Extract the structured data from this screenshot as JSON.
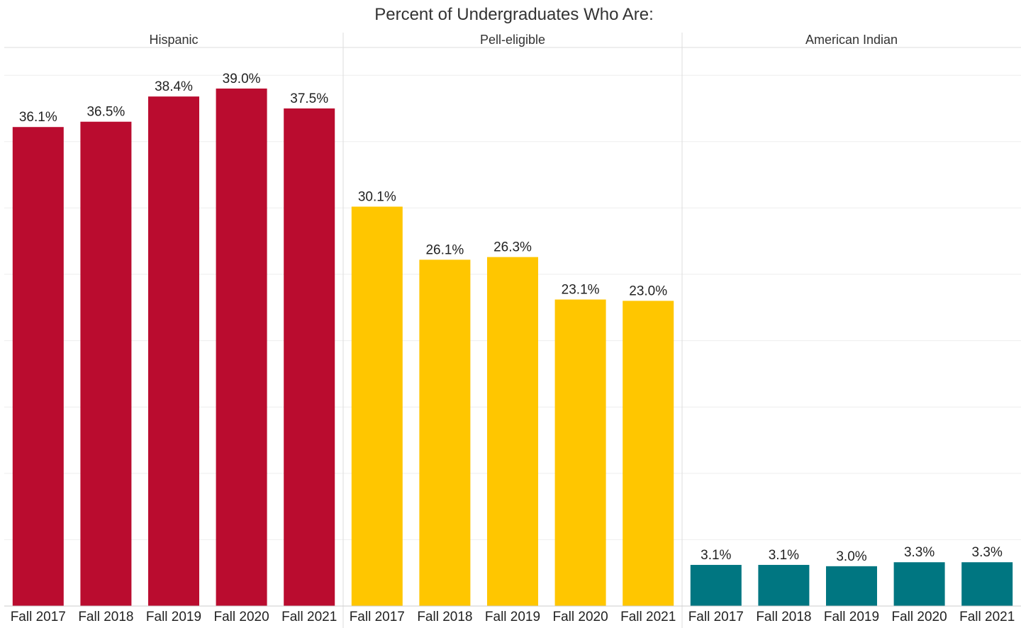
{
  "chart_data": {
    "type": "bar",
    "title": "Percent of Undergraduates Who Are:",
    "categories": [
      "Fall 2017",
      "Fall 2018",
      "Fall 2019",
      "Fall 2020",
      "Fall 2021"
    ],
    "ylim": [
      0,
      40
    ],
    "grid": true,
    "colors": {
      "Hispanic": "#ba0c2f",
      "Pell-eligible": "#ffc600",
      "American Indian": "#007681"
    },
    "series": [
      {
        "name": "Hispanic",
        "values": [
          36.1,
          36.5,
          38.4,
          39.0,
          37.5
        ],
        "labels": [
          "36.1%",
          "36.5%",
          "38.4%",
          "39.0%",
          "37.5%"
        ]
      },
      {
        "name": "Pell-eligible",
        "values": [
          30.1,
          26.1,
          26.3,
          23.1,
          23.0
        ],
        "labels": [
          "30.1%",
          "26.1%",
          "26.3%",
          "23.1%",
          "23.0%"
        ]
      },
      {
        "name": "American Indian",
        "values": [
          3.1,
          3.1,
          3.0,
          3.3,
          3.3
        ],
        "labels": [
          "3.1%",
          "3.1%",
          "3.0%",
          "3.3%",
          "3.3%"
        ]
      }
    ]
  }
}
